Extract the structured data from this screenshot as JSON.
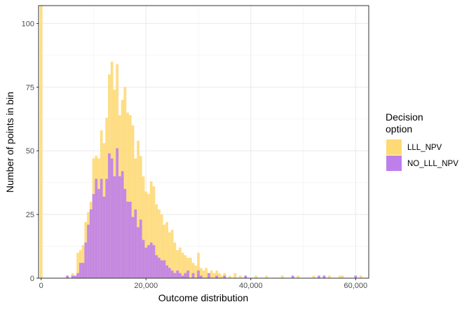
{
  "chart_data": {
    "type": "histogram",
    "xlabel": "Outcome distribution",
    "ylabel": "Number of points in bin",
    "xlim": [
      -500,
      62500
    ],
    "ylim": [
      0,
      107
    ],
    "x_ticks": [
      0,
      20000,
      40000,
      60000
    ],
    "x_tick_labels": [
      "0",
      "20,000",
      "40,000",
      "60,000"
    ],
    "y_ticks": [
      0,
      25,
      50,
      75,
      100
    ],
    "y_tick_labels": [
      "0",
      "25",
      "50",
      "75",
      "100"
    ],
    "grid": true,
    "legend": {
      "title_lines": [
        "Decision",
        "option"
      ],
      "position": "right"
    },
    "bin_width": 500,
    "series": [
      {
        "name": "LLL_NPV",
        "color": "#FED976",
        "bins": [
          [
            0,
            107
          ],
          [
            5000,
            1
          ],
          [
            6000,
            2
          ],
          [
            7000,
            10
          ],
          [
            7500,
            11
          ],
          [
            8000,
            13
          ],
          [
            8500,
            22
          ],
          [
            9000,
            26
          ],
          [
            9500,
            30
          ],
          [
            10000,
            47
          ],
          [
            10500,
            48
          ],
          [
            11000,
            47
          ],
          [
            11500,
            58
          ],
          [
            12000,
            53
          ],
          [
            12500,
            63
          ],
          [
            13000,
            80
          ],
          [
            13500,
            85
          ],
          [
            14000,
            74
          ],
          [
            14500,
            84
          ],
          [
            15000,
            64
          ],
          [
            15500,
            70
          ],
          [
            16000,
            75
          ],
          [
            16500,
            65
          ],
          [
            17000,
            64
          ],
          [
            17500,
            60
          ],
          [
            18000,
            47
          ],
          [
            18500,
            54
          ],
          [
            19000,
            48
          ],
          [
            19500,
            40
          ],
          [
            20000,
            34
          ],
          [
            20500,
            33
          ],
          [
            21000,
            38
          ],
          [
            21500,
            36
          ],
          [
            22000,
            29
          ],
          [
            22500,
            27
          ],
          [
            23000,
            25
          ],
          [
            23500,
            21
          ],
          [
            24000,
            22
          ],
          [
            24500,
            18
          ],
          [
            25000,
            19
          ],
          [
            25500,
            14
          ],
          [
            26000,
            11
          ],
          [
            26500,
            12
          ],
          [
            27000,
            10
          ],
          [
            27500,
            9
          ],
          [
            28000,
            8
          ],
          [
            28500,
            8
          ],
          [
            29000,
            6
          ],
          [
            29500,
            5
          ],
          [
            30000,
            10
          ],
          [
            30500,
            4
          ],
          [
            31000,
            3
          ],
          [
            31500,
            4
          ],
          [
            32000,
            2
          ],
          [
            32500,
            3
          ],
          [
            33000,
            2
          ],
          [
            33500,
            3
          ],
          [
            34000,
            2
          ],
          [
            34500,
            1
          ],
          [
            35000,
            2
          ],
          [
            36000,
            1
          ],
          [
            37000,
            2
          ],
          [
            38000,
            1
          ],
          [
            39000,
            1
          ],
          [
            41000,
            1
          ],
          [
            43000,
            1
          ],
          [
            46000,
            1
          ],
          [
            49000,
            1
          ],
          [
            52000,
            1
          ],
          [
            54000,
            1
          ],
          [
            55000,
            1
          ],
          [
            57000,
            1
          ],
          [
            57500,
            1
          ],
          [
            61000,
            1
          ]
        ]
      },
      {
        "name": "NO_LLL_NPV",
        "color": "#BF7FEB",
        "bins": [
          [
            5000,
            1
          ],
          [
            6000,
            1
          ],
          [
            6500,
            1
          ],
          [
            7000,
            2
          ],
          [
            7500,
            6
          ],
          [
            8000,
            6
          ],
          [
            8500,
            14
          ],
          [
            9000,
            21
          ],
          [
            9500,
            27
          ],
          [
            10000,
            33
          ],
          [
            10500,
            39
          ],
          [
            11000,
            35
          ],
          [
            11500,
            39
          ],
          [
            12000,
            32
          ],
          [
            12500,
            39
          ],
          [
            13000,
            49
          ],
          [
            13500,
            47
          ],
          [
            14000,
            40
          ],
          [
            14500,
            51
          ],
          [
            15000,
            40
          ],
          [
            15500,
            42
          ],
          [
            16000,
            35
          ],
          [
            16500,
            30
          ],
          [
            17000,
            30
          ],
          [
            17500,
            24
          ],
          [
            18000,
            27
          ],
          [
            18500,
            20
          ],
          [
            19000,
            23
          ],
          [
            19500,
            15
          ],
          [
            20000,
            12
          ],
          [
            20500,
            13
          ],
          [
            21000,
            14
          ],
          [
            21500,
            13
          ],
          [
            22000,
            9
          ],
          [
            22500,
            8
          ],
          [
            23000,
            7
          ],
          [
            23500,
            7
          ],
          [
            24000,
            5
          ],
          [
            24500,
            4
          ],
          [
            25000,
            3
          ],
          [
            25500,
            2
          ],
          [
            26000,
            3
          ],
          [
            26500,
            2
          ],
          [
            27000,
            1
          ],
          [
            27500,
            2
          ],
          [
            28000,
            3
          ],
          [
            29000,
            2
          ],
          [
            30000,
            3
          ],
          [
            30500,
            1
          ],
          [
            32000,
            2
          ],
          [
            33500,
            1
          ],
          [
            35000,
            1
          ],
          [
            39000,
            1
          ],
          [
            48000,
            1
          ],
          [
            53000,
            1
          ],
          [
            54000,
            1
          ],
          [
            60000,
            1
          ]
        ]
      }
    ]
  }
}
